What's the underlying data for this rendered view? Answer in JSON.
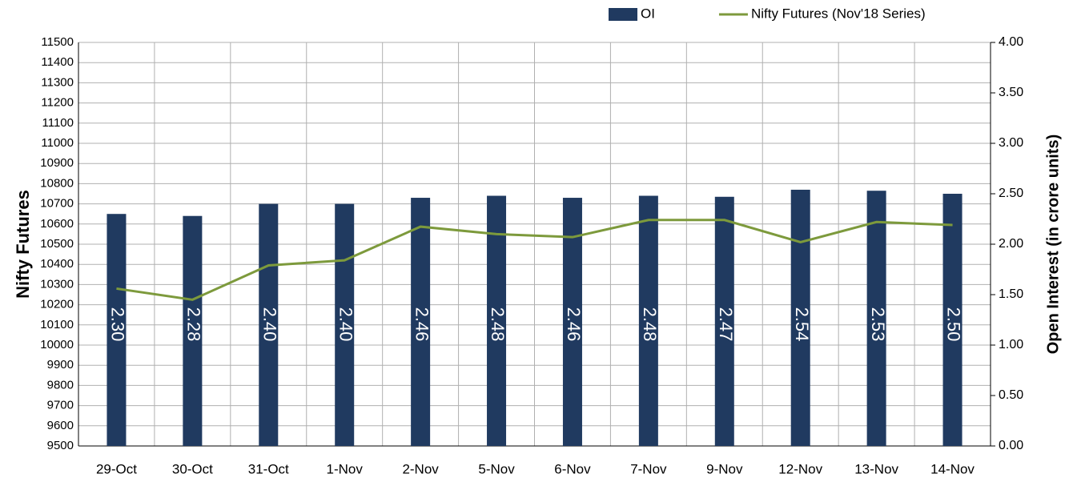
{
  "chart_data": {
    "type": "bar_line",
    "categories": [
      "29-Oct",
      "30-Oct",
      "31-Oct",
      "1-Nov",
      "2-Nov",
      "5-Nov",
      "6-Nov",
      "7-Nov",
      "9-Nov",
      "12-Nov",
      "13-Nov",
      "14-Nov"
    ],
    "series": [
      {
        "name": "OI",
        "type": "bar",
        "axis": "y2",
        "color": "#203a60",
        "values": [
          2.3,
          2.28,
          2.4,
          2.4,
          2.46,
          2.48,
          2.46,
          2.48,
          2.47,
          2.54,
          2.53,
          2.5
        ],
        "value_labels": [
          "2.30",
          "2.28",
          "2.40",
          "2.40",
          "2.46",
          "2.48",
          "2.46",
          "2.48",
          "2.47",
          "2.54",
          "2.53",
          "2.50"
        ]
      },
      {
        "name": "Nifty Futures (Nov'18 Series)",
        "type": "line",
        "color": "#7d9a3c",
        "values": [
          10280,
          10225,
          10395,
          10420,
          10587,
          10550,
          10535,
          10620,
          10620,
          10510,
          10610,
          10595
        ]
      }
    ],
    "ylabel": "Nifty Futures",
    "y2label": "Open Interest (in crore units)",
    "ylim": [
      9500,
      11500
    ],
    "yticks": [
      9500,
      9600,
      9700,
      9800,
      9900,
      10000,
      10100,
      10200,
      10300,
      10400,
      10500,
      10600,
      10700,
      10800,
      10900,
      11000,
      11100,
      11200,
      11300,
      11400,
      11500
    ],
    "y2lim": [
      0,
      4
    ],
    "y2ticks": [
      {
        "value": 0,
        "label": "0.00"
      },
      {
        "value": 0.5,
        "label": "0.50"
      },
      {
        "value": 1,
        "label": "1.00"
      },
      {
        "value": 1.5,
        "label": "1.50"
      },
      {
        "value": 2,
        "label": "2.00"
      },
      {
        "value": 2.5,
        "label": "2.50"
      },
      {
        "value": 3,
        "label": "3.00"
      },
      {
        "value": 3.5,
        "label": "3.50"
      },
      {
        "value": 4,
        "label": "4.00"
      }
    ],
    "grid": true,
    "legend": "top-right"
  }
}
